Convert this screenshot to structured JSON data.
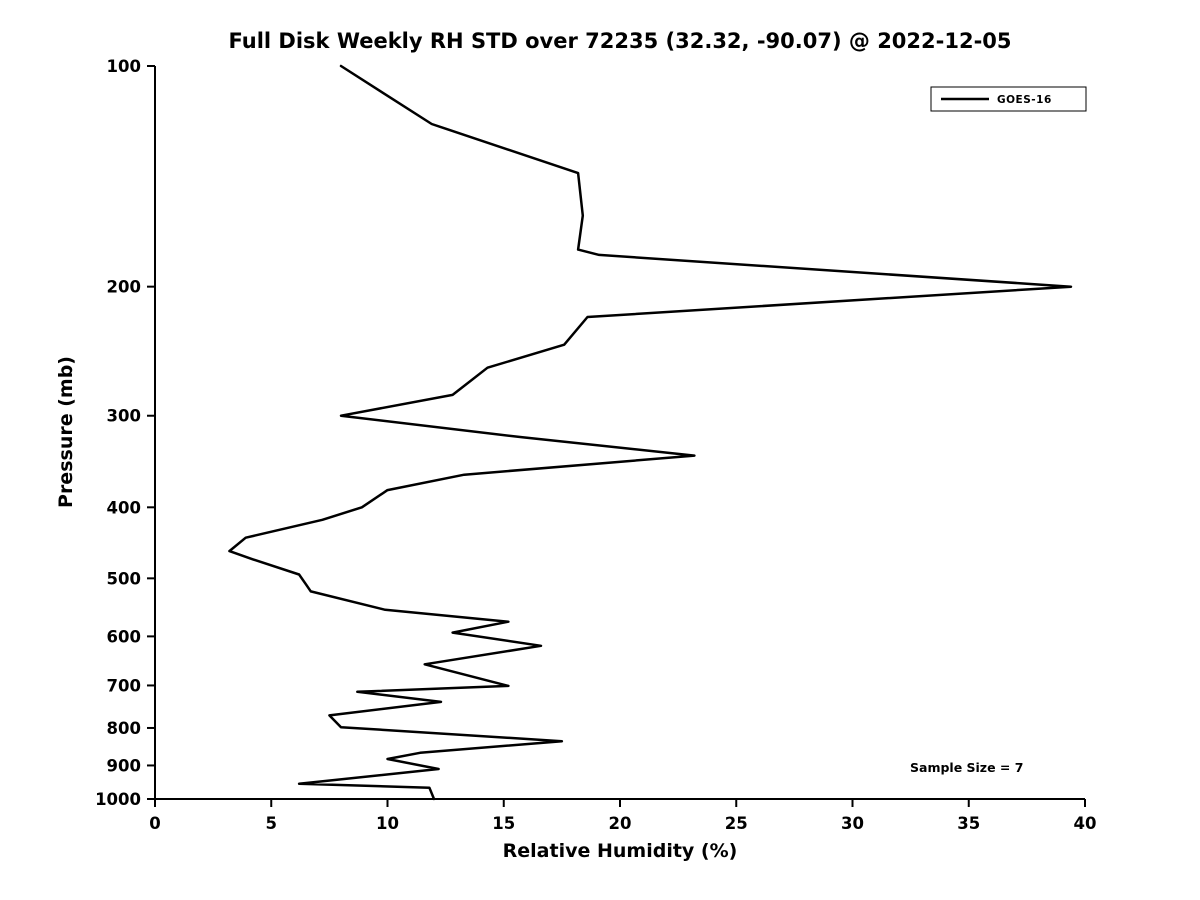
{
  "chart_data": {
    "type": "line",
    "title": "Full Disk Weekly RH STD over 72235 (32.32, -90.07) @ 2022-12-05",
    "xlabel": "Relative Humidity (%)",
    "ylabel": "Pressure (mb)",
    "xlim": [
      0,
      40
    ],
    "ylim": [
      100,
      1000
    ],
    "y_scale": "log",
    "y_inverted": true,
    "grid": false,
    "x_ticks": [
      0,
      5,
      10,
      15,
      20,
      25,
      30,
      35,
      40
    ],
    "y_ticks": [
      100,
      200,
      300,
      400,
      500,
      600,
      700,
      800,
      900,
      1000
    ],
    "legend_position": "upper right",
    "annotation": "Sample Size = 7",
    "line_color": "#000000",
    "series": [
      {
        "name": "GOES-16",
        "pressure_mb": [
          100,
          120,
          140,
          160,
          178,
          181,
          200,
          220,
          240,
          258,
          281,
          300,
          321,
          340,
          361,
          379,
          400,
          416,
          440,
          459,
          471,
          494,
          510,
          521,
          552,
          573,
          593,
          618,
          655,
          701,
          714,
          737,
          769,
          798,
          834,
          865,
          882,
          910,
          953,
          965,
          1000
        ],
        "rh_percent": [
          8.0,
          11.9,
          18.2,
          18.4,
          18.2,
          19.1,
          39.4,
          18.6,
          17.6,
          14.3,
          12.8,
          8.0,
          15.8,
          23.2,
          13.3,
          10.0,
          8.9,
          7.2,
          3.9,
          3.2,
          4.2,
          6.2,
          6.5,
          6.7,
          9.9,
          15.2,
          12.8,
          16.6,
          11.6,
          15.2,
          8.7,
          12.3,
          7.5,
          8.0,
          17.5,
          11.4,
          10.0,
          12.2,
          6.2,
          11.8,
          12.0
        ]
      }
    ]
  }
}
